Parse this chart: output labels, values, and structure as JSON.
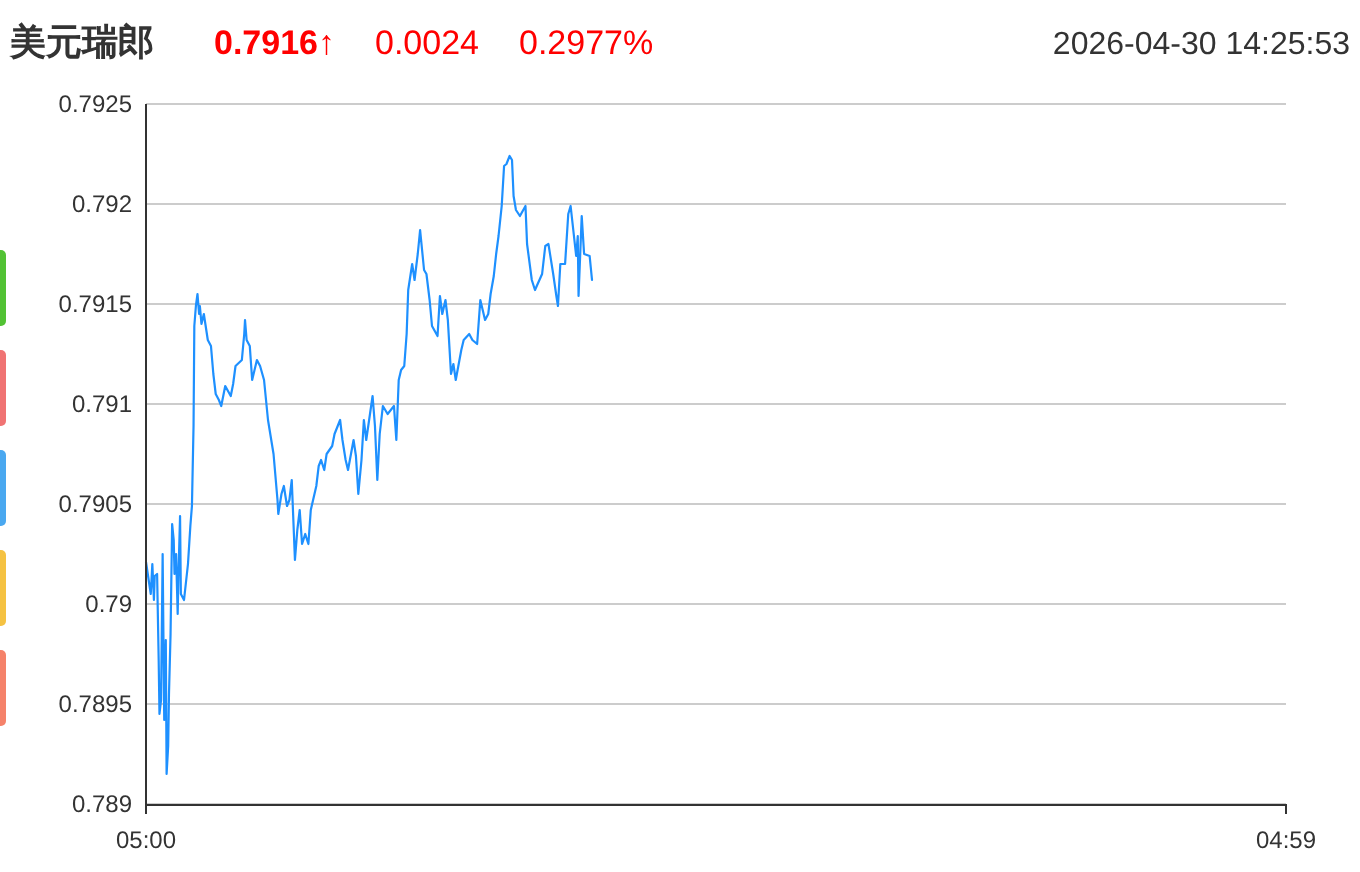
{
  "chart_data": {
    "type": "line",
    "title": "美元瑞郎",
    "annotations": [
      "0.7916↑",
      "0.0024",
      "0.2977%",
      "2026-04-30 14:25:53"
    ],
    "x": [
      "2026-04-30T05:00",
      "2026-04-30T05:06",
      "2026-04-30T05:08",
      "2026-04-30T05:10",
      "2026-04-30T05:11",
      "2026-04-30T05:14",
      "2026-04-30T05:16",
      "2026-04-30T05:17",
      "2026-04-30T05:19",
      "2026-04-30T05:21",
      "2026-04-30T05:23",
      "2026-04-30T05:25",
      "2026-04-30T05:26",
      "2026-04-30T05:28",
      "2026-04-30T05:29",
      "2026-04-30T05:31",
      "2026-04-30T05:33",
      "2026-04-30T05:35",
      "2026-04-30T05:36",
      "2026-04-30T05:38",
      "2026-04-30T05:40",
      "2026-04-30T05:41",
      "2026-04-30T05:43",
      "2026-04-30T05:44",
      "2026-04-30T05:48",
      "2026-04-30T05:53",
      "2026-04-30T05:56",
      "2026-04-30T05:58",
      "2026-04-30T06:00",
      "2026-04-30T06:01",
      "2026-04-30T06:03",
      "2026-04-30T06:05",
      "2026-04-30T06:07",
      "2026-04-30T06:08",
      "2026-04-30T06:10",
      "2026-04-30T06:13",
      "2026-04-30T06:18",
      "2026-04-30T06:22",
      "2026-04-30T06:25",
      "2026-04-30T06:28",
      "2026-04-30T06:32",
      "2026-04-30T06:35",
      "2026-04-30T06:40",
      "2026-04-30T06:47",
      "2026-04-30T06:50",
      "2026-04-30T06:53",
      "2026-04-30T07:01",
      "2026-04-30T07:04",
      "2026-04-30T07:05",
      "2026-04-30T07:07",
      "2026-04-30T07:11",
      "2026-04-30T07:14",
      "2026-04-30T07:20",
      "2026-04-30T07:24",
      "2026-04-30T07:29",
      "2026-04-30T07:34",
      "2026-04-30T07:41",
      "2026-04-30T07:46",
      "2026-04-30T07:47",
      "2026-04-30T07:51",
      "2026-04-30T07:54",
      "2026-04-30T07:58",
      "2026-04-30T08:01",
      "2026-04-30T08:04",
      "2026-04-30T08:08",
      "2026-04-30T08:11",
      "2026-04-30T08:14",
      "2026-04-30T08:17",
      "2026-04-30T08:21",
      "2026-04-30T08:25",
      "2026-04-30T08:28",
      "2026-04-30T08:35",
      "2026-04-30T08:38",
      "2026-04-30T08:41",
      "2026-04-30T08:45",
      "2026-04-30T08:48",
      "2026-04-30T08:55",
      "2026-04-30T08:58",
      "2026-04-30T09:05",
      "2026-04-30T09:08",
      "2026-04-30T09:12",
      "2026-04-30T09:15",
      "2026-04-30T09:22",
      "2026-04-30T09:25",
      "2026-04-30T09:28",
      "2026-04-30T09:32",
      "2026-04-30T09:35",
      "2026-04-30T09:38",
      "2026-04-30T09:46",
      "2026-04-30T09:49",
      "2026-04-30T09:52",
      "2026-04-30T09:55",
      "2026-04-30T09:59",
      "2026-04-30T10:05",
      "2026-04-30T10:13",
      "2026-04-30T10:16",
      "2026-04-30T10:19",
      "2026-04-30T10:22",
      "2026-04-30T10:26",
      "2026-04-30T10:29",
      "2026-04-30T10:31",
      "2026-04-30T10:36",
      "2026-04-30T10:39",
      "2026-04-30T10:43",
      "2026-04-30T10:46",
      "2026-04-30T10:51",
      "2026-04-30T10:54",
      "2026-04-30T10:58",
      "2026-04-30T11:01",
      "2026-04-30T11:08",
      "2026-04-30T11:11",
      "2026-04-30T11:14",
      "2026-04-30T11:18",
      "2026-04-30T11:21",
      "2026-04-30T11:25",
      "2026-04-30T11:28",
      "2026-04-30T11:31",
      "2026-04-30T11:38",
      "2026-04-30T11:41",
      "2026-04-30T11:48",
      "2026-04-30T11:52",
      "2026-04-30T11:58",
      "2026-04-30T12:02",
      "2026-04-30T12:08",
      "2026-04-30T12:12",
      "2026-04-30T12:15",
      "2026-04-30T12:19",
      "2026-04-30T12:22",
      "2026-04-30T12:25",
      "2026-04-30T12:29",
      "2026-04-30T12:32",
      "2026-04-30T12:35",
      "2026-04-30T12:39",
      "2026-04-30T12:42",
      "2026-04-30T12:44",
      "2026-04-30T12:47",
      "2026-04-30T12:52",
      "2026-04-30T12:59",
      "2026-04-30T13:01",
      "2026-04-30T13:07",
      "2026-04-30T13:11",
      "2026-04-30T13:20",
      "2026-04-30T13:24",
      "2026-04-30T13:28",
      "2026-04-30T13:34",
      "2026-04-30T13:38",
      "2026-04-30T13:40",
      "2026-04-30T13:43",
      "2026-04-30T13:49",
      "2026-04-30T13:53",
      "2026-04-30T13:56",
      "2026-04-30T14:03",
      "2026-04-30T14:05",
      "2026-04-30T14:06",
      "2026-04-30T14:10",
      "2026-04-30T14:13",
      "2026-04-30T14:20",
      "2026-04-30T14:23"
    ],
    "series": [
      {
        "color": "#1e90ff",
        "values": [
          0.79021,
          0.79005,
          0.7902,
          0.79002,
          0.79014,
          0.79015,
          0.78972,
          0.78945,
          0.78952,
          0.79025,
          0.78942,
          0.78982,
          0.78915,
          0.78929,
          0.78955,
          0.78985,
          0.7904,
          0.79032,
          0.79015,
          0.79025,
          0.78995,
          0.79015,
          0.79044,
          0.79005,
          0.79002,
          0.7902,
          0.79039,
          0.79049,
          0.79089,
          0.79139,
          0.79149,
          0.79155,
          0.79145,
          0.79149,
          0.7914,
          0.79145,
          0.79132,
          0.79129,
          0.79115,
          0.79105,
          0.79102,
          0.79099,
          0.79109,
          0.79104,
          0.7911,
          0.79119,
          0.79122,
          0.79135,
          0.79142,
          0.79132,
          0.79129,
          0.79112,
          0.79122,
          0.79119,
          0.79112,
          0.79092,
          0.79075,
          0.79052,
          0.79045,
          0.79055,
          0.79059,
          0.79049,
          0.79052,
          0.79062,
          0.79022,
          0.79037,
          0.79047,
          0.7903,
          0.79035,
          0.7903,
          0.79047,
          0.79059,
          0.79069,
          0.79072,
          0.79067,
          0.79075,
          0.79079,
          0.79085,
          0.79092,
          0.79082,
          0.79072,
          0.79067,
          0.79082,
          0.79074,
          0.79055,
          0.79072,
          0.79092,
          0.79082,
          0.79104,
          0.79089,
          0.79062,
          0.79085,
          0.79099,
          0.79095,
          0.79099,
          0.79082,
          0.79112,
          0.79117,
          0.79119,
          0.79135,
          0.79157,
          0.7917,
          0.79162,
          0.79175,
          0.79187,
          0.79167,
          0.79165,
          0.79152,
          0.79139,
          0.79134,
          0.79154,
          0.79145,
          0.79152,
          0.79142,
          0.79115,
          0.7912,
          0.79112,
          0.79127,
          0.79132,
          0.79135,
          0.79132,
          0.7913,
          0.79152,
          0.79142,
          0.79145,
          0.79155,
          0.79164,
          0.79175,
          0.79184,
          0.79199,
          0.79219,
          0.7922,
          0.79224,
          0.79222,
          0.79204,
          0.79197,
          0.79194,
          0.79199,
          0.7918,
          0.79162,
          0.79157,
          0.79165,
          0.79179,
          0.7918,
          0.79165,
          0.79154,
          0.79149,
          0.7917,
          0.7917,
          0.79195,
          0.79199,
          0.79174,
          0.79184,
          0.79154,
          0.79194,
          0.79175,
          0.79174,
          0.79162
        ]
      }
    ],
    "xlim": [
      "2026-04-30T05:00",
      "2026-05-01T04:59"
    ],
    "xticks": [
      {
        "value": "2026-04-30T05:00",
        "label": "05:00"
      },
      {
        "value": "2026-05-01T04:59",
        "label": "04:59"
      }
    ],
    "ylim": [
      0.789,
      0.7925
    ],
    "yticks": [
      0.789,
      0.7895,
      0.79,
      0.7905,
      0.791,
      0.7915,
      0.792,
      0.7925
    ],
    "grid": "y"
  }
}
